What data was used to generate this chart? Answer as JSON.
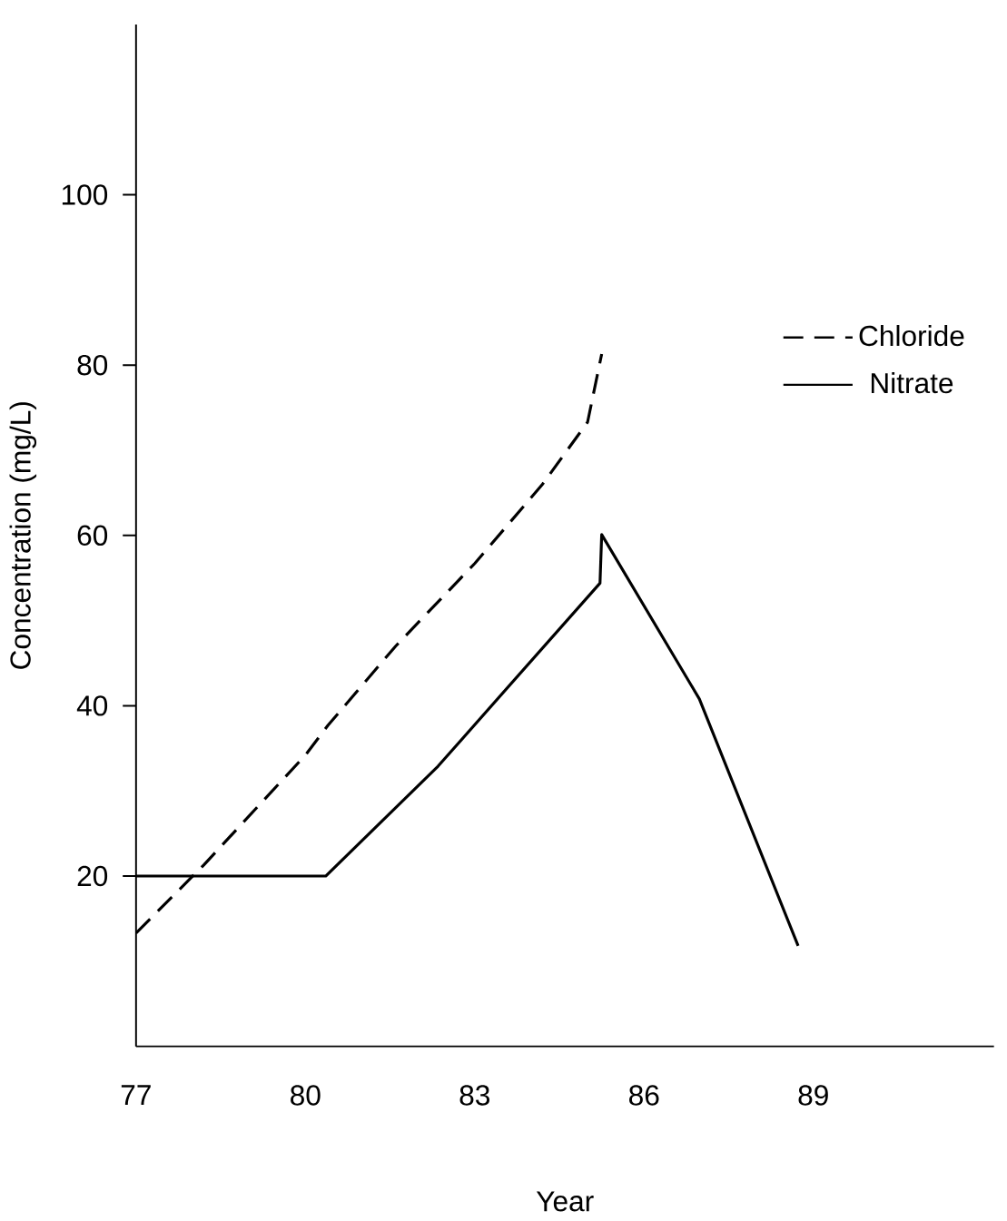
{
  "chart_data": {
    "type": "line",
    "xlabel": "Year",
    "ylabel": "Concentration (mg/L)",
    "xlim": [
      77,
      92.2
    ],
    "ylim": [
      0,
      120
    ],
    "xticks": [
      77,
      80,
      83,
      86,
      89
    ],
    "yticks": [
      20,
      40,
      60,
      80,
      100
    ],
    "grid": false,
    "legend": "right",
    "series": [
      {
        "name": "Chloride",
        "color": "#000000",
        "line_style": "dashed",
        "x": [
          77,
          78.2,
          80,
          80.4,
          81.6,
          83,
          84.2,
          85,
          85.25
        ],
        "values": [
          13.3,
          21.3,
          34.2,
          37.7,
          47,
          56.7,
          66,
          73.3,
          81.3
        ]
      },
      {
        "name": "Nitrate",
        "color": "#000000",
        "line_style": "solid",
        "x": [
          77,
          80.36,
          82.35,
          85.22,
          85.25,
          86.98,
          88.73
        ],
        "values": [
          20,
          20,
          32.9,
          54.4,
          60.1,
          40.8,
          11.8
        ]
      }
    ]
  }
}
